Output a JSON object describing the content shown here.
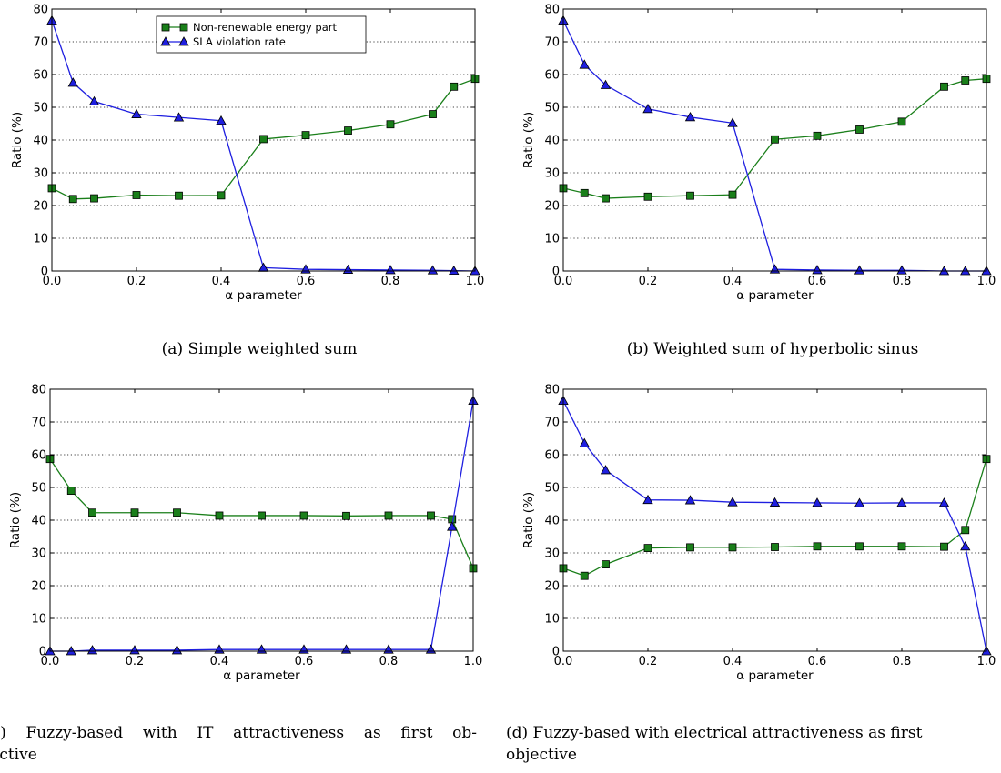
{
  "colors": {
    "nonrenewable": "#1a7f1a",
    "sla": "#1f1fe0",
    "grid": "#000000"
  },
  "captions": {
    "a": "(a) Simple weighted sum",
    "b": "(b) Weighted sum of hyperbolic sinus",
    "c_line1": "(c) Fuzzy-based with IT attractiveness as first ob-",
    "c_line2": "jective",
    "d_line1": "(d) Fuzzy-based with electrical attractiveness as first",
    "d_line2": "objective"
  },
  "chart_data": [
    {
      "id": "a",
      "type": "line",
      "xlabel": "α parameter",
      "ylabel": "Ratio (%)",
      "xlim": [
        0,
        1.0
      ],
      "ylim": [
        0,
        80
      ],
      "xticks": [
        "0.0",
        "0.2",
        "0.4",
        "0.6",
        "0.8",
        "1.0"
      ],
      "yticks": [
        "0",
        "10",
        "20",
        "30",
        "40",
        "50",
        "60",
        "70",
        "80"
      ],
      "grid": "y-dotted",
      "legend": "top-left",
      "x": [
        0.0,
        0.05,
        0.1,
        0.2,
        0.3,
        0.4,
        0.5,
        0.6,
        0.7,
        0.8,
        0.9,
        0.95,
        1.0
      ],
      "series": [
        {
          "name": "Non-renewable energy part",
          "marker": "square",
          "values": [
            25.3,
            22.0,
            22.2,
            23.2,
            23.0,
            23.1,
            40.3,
            41.5,
            42.9,
            44.8,
            47.9,
            56.3,
            58.7
          ]
        },
        {
          "name": "SLA violation rate",
          "marker": "triangle",
          "values": [
            76.5,
            57.5,
            51.8,
            47.9,
            46.9,
            45.9,
            1.0,
            0.5,
            0.4,
            0.3,
            0.2,
            0.1,
            0.0
          ]
        }
      ]
    },
    {
      "id": "b",
      "type": "line",
      "xlabel": "α parameter",
      "ylabel": "Ratio (%)",
      "xlim": [
        0,
        1.0
      ],
      "ylim": [
        0,
        80
      ],
      "xticks": [
        "0.0",
        "0.2",
        "0.4",
        "0.6",
        "0.8",
        "1.0"
      ],
      "yticks": [
        "0",
        "10",
        "20",
        "30",
        "40",
        "50",
        "60",
        "70",
        "80"
      ],
      "grid": "y-dotted",
      "x": [
        0.0,
        0.05,
        0.1,
        0.2,
        0.3,
        0.4,
        0.5,
        0.6,
        0.7,
        0.8,
        0.9,
        0.95,
        1.0
      ],
      "series": [
        {
          "name": "Non-renewable energy part",
          "marker": "square",
          "values": [
            25.3,
            23.8,
            22.2,
            22.7,
            23.0,
            23.3,
            40.2,
            41.3,
            43.2,
            45.6,
            56.3,
            58.2,
            58.7
          ]
        },
        {
          "name": "SLA violation rate",
          "marker": "triangle",
          "values": [
            76.5,
            63.0,
            56.8,
            49.5,
            47.0,
            45.2,
            0.5,
            0.3,
            0.2,
            0.2,
            0.0,
            0.0,
            0.0
          ]
        }
      ]
    },
    {
      "id": "c",
      "type": "line",
      "xlabel": "α parameter",
      "ylabel": "Ratio (%)",
      "xlim": [
        0,
        1.0
      ],
      "ylim": [
        0,
        80
      ],
      "xticks": [
        "0.0",
        "0.2",
        "0.4",
        "0.6",
        "0.8",
        "1.0"
      ],
      "yticks": [
        "0",
        "10",
        "20",
        "30",
        "40",
        "50",
        "60",
        "70",
        "80"
      ],
      "grid": "y-dotted",
      "x": [
        0.0,
        0.05,
        0.1,
        0.2,
        0.3,
        0.4,
        0.5,
        0.6,
        0.7,
        0.8,
        0.9,
        0.95,
        1.0
      ],
      "series": [
        {
          "name": "Non-renewable energy part",
          "marker": "square",
          "values": [
            58.7,
            49.0,
            42.3,
            42.3,
            42.3,
            41.4,
            41.4,
            41.4,
            41.3,
            41.4,
            41.4,
            40.3,
            25.3
          ]
        },
        {
          "name": "SLA violation rate",
          "marker": "triangle",
          "values": [
            0.0,
            0.0,
            0.3,
            0.3,
            0.3,
            0.5,
            0.5,
            0.5,
            0.5,
            0.5,
            0.5,
            38.0,
            76.5
          ]
        }
      ]
    },
    {
      "id": "d",
      "type": "line",
      "xlabel": "α parameter",
      "ylabel": "Ratio (%)",
      "xlim": [
        0,
        1.0
      ],
      "ylim": [
        0,
        80
      ],
      "xticks": [
        "0.0",
        "0.2",
        "0.4",
        "0.6",
        "0.8",
        "1.0"
      ],
      "yticks": [
        "0",
        "10",
        "20",
        "30",
        "40",
        "50",
        "60",
        "70",
        "80"
      ],
      "grid": "y-dotted",
      "x": [
        0.0,
        0.05,
        0.1,
        0.2,
        0.3,
        0.4,
        0.5,
        0.6,
        0.7,
        0.8,
        0.9,
        0.95,
        1.0
      ],
      "series": [
        {
          "name": "Non-renewable energy part",
          "marker": "square",
          "values": [
            25.3,
            23.0,
            26.5,
            31.5,
            31.7,
            31.7,
            31.8,
            32.0,
            32.0,
            32.0,
            31.9,
            37.0,
            58.7
          ]
        },
        {
          "name": "SLA violation rate",
          "marker": "triangle",
          "values": [
            76.5,
            63.5,
            55.3,
            46.2,
            46.1,
            45.5,
            45.4,
            45.3,
            45.2,
            45.3,
            45.3,
            32.0,
            0.0
          ]
        }
      ]
    }
  ]
}
